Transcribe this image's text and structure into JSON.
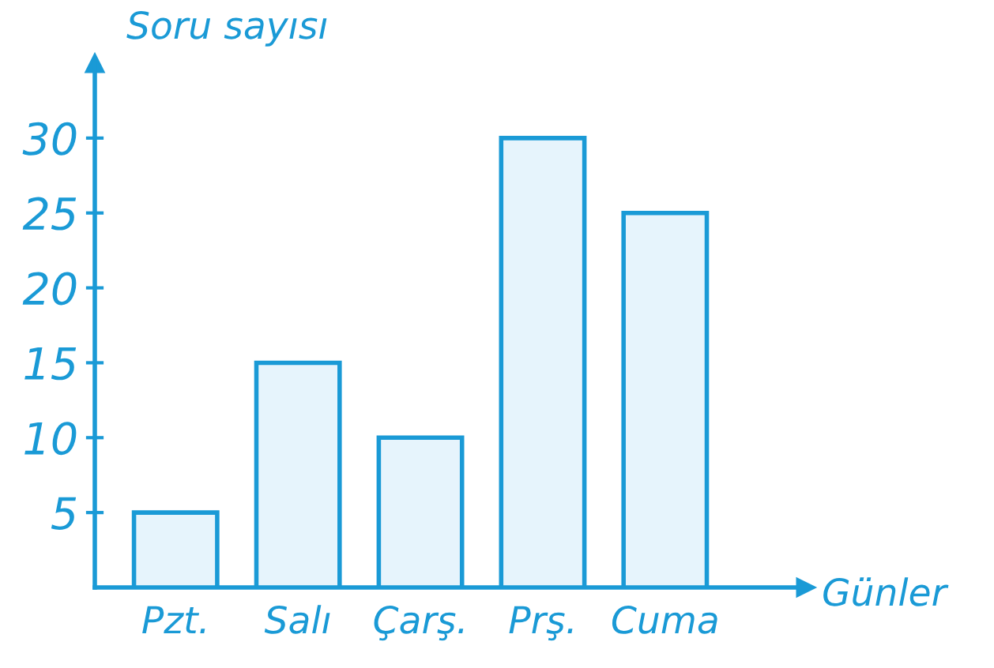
{
  "chart_data": {
    "type": "bar",
    "xlabel": "Günler",
    "ylabel": "Soru sayısı",
    "categories": [
      "Pzt.",
      "Salı",
      "Çarş.",
      "Prş.",
      "Cuma"
    ],
    "values": [
      5,
      15,
      10,
      30,
      25
    ],
    "color": "#e6f4fc",
    "ylim": [
      0,
      35
    ],
    "yticks": [
      5,
      10,
      15,
      20,
      25,
      30
    ],
    "grid": false,
    "legend": false
  }
}
